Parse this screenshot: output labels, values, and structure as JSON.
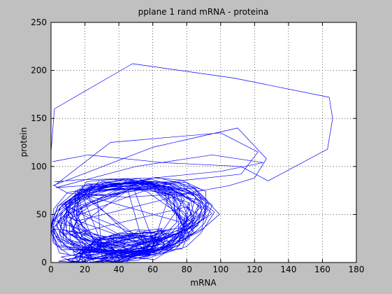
{
  "chart_data": {
    "type": "line",
    "title": "pplane 1 rand mRNA - proteina",
    "xlabel": "mRNA",
    "ylabel": "protein",
    "xlim": [
      0,
      180
    ],
    "ylim": [
      0,
      250
    ],
    "xticks": [
      0,
      20,
      40,
      60,
      80,
      100,
      120,
      140,
      160,
      180
    ],
    "yticks": [
      0,
      50,
      100,
      150,
      200,
      250
    ],
    "grid": true,
    "line_color": "#0000ff",
    "series": [
      {
        "style": "outer-excursion",
        "x": [
          0,
          2,
          48,
          108,
          164,
          166,
          163,
          128,
          112,
          66,
          22,
          1
        ],
        "y": [
          115,
          160,
          207,
          192,
          172,
          150,
          118,
          85,
          100,
          104,
          112,
          105
        ]
      },
      {
        "style": "upper-loops",
        "x": [
          1,
          60,
          110,
          118,
          127,
          120,
          105,
          80,
          45,
          10,
          2,
          35,
          100,
          122,
          112,
          70,
          20,
          3,
          50,
          95,
          125,
          100,
          60,
          15,
          2
        ],
        "y": [
          80,
          120,
          140,
          125,
          108,
          88,
          80,
          72,
          68,
          72,
          80,
          125,
          135,
          115,
          92,
          84,
          80,
          78,
          100,
          112,
          104,
          95,
          88,
          86,
          84
        ]
      },
      {
        "style": "dense-orbits",
        "loops": 34,
        "base": {
          "x": 46,
          "y": 46
        },
        "rx": [
          30,
          52
        ],
        "ry": [
          26,
          42
        ],
        "rotation_deg": 28
      },
      {
        "style": "lower-band",
        "loops": 16,
        "base": {
          "x": 40,
          "y": 14
        },
        "rx": [
          18,
          36
        ],
        "ry": [
          6,
          14
        ],
        "rotation_deg": 30
      }
    ]
  }
}
